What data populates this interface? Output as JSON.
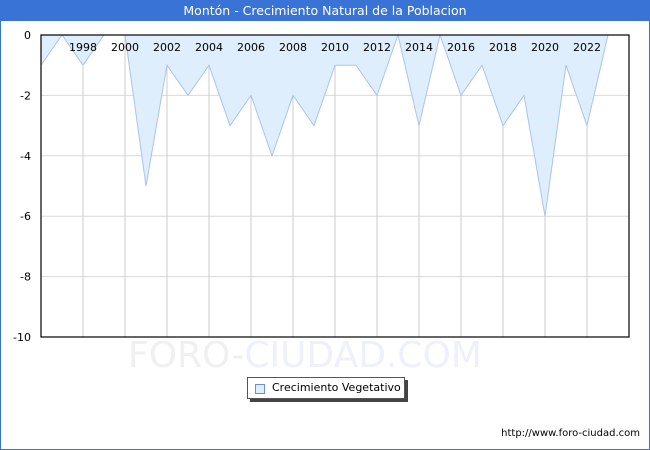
{
  "header": {
    "title": "Montón - Crecimiento Natural de la Poblacion"
  },
  "legend": {
    "label": "Crecimiento Vegetativo",
    "swatch_color": "#dfeefc"
  },
  "watermark": {
    "part1": "FORO-",
    "part2": "CIUDAD.COM"
  },
  "footer": {
    "url": "http://www.foro-ciudad.com"
  },
  "colors": {
    "title_bar": "#3a73d6",
    "fill": "#dfeefc",
    "line": "#a9c4ee",
    "grid": "#d9d9d9"
  },
  "chart_data": {
    "type": "area",
    "title": "Montón - Crecimiento Natural de la Poblacion",
    "xlabel": "",
    "ylabel": "",
    "x": [
      1996,
      1997,
      1998,
      1999,
      2000,
      2001,
      2002,
      2003,
      2004,
      2005,
      2006,
      2007,
      2008,
      2009,
      2010,
      2011,
      2012,
      2013,
      2014,
      2015,
      2016,
      2017,
      2018,
      2019,
      2020,
      2021,
      2022,
      2023
    ],
    "series": [
      {
        "name": "Crecimiento Vegetativo",
        "values": [
          -1,
          0,
          -1,
          0,
          0,
          -5,
          -1,
          -2,
          -1,
          -3,
          -2,
          -4,
          -2,
          -3,
          -1,
          -1,
          -2,
          0,
          -3,
          0,
          -2,
          -1,
          -3,
          -2,
          -6,
          -1,
          -3,
          0
        ]
      }
    ],
    "ylim": [
      -10,
      0
    ],
    "yticks": [
      0,
      -2,
      -4,
      -6,
      -8,
      -10
    ],
    "xticks": [
      "1998",
      "2000",
      "2002",
      "2004",
      "2006",
      "2008",
      "2010",
      "2012",
      "2014",
      "2016",
      "2018",
      "2020",
      "2022"
    ],
    "grid": true,
    "legend_position": "bottom-center"
  }
}
